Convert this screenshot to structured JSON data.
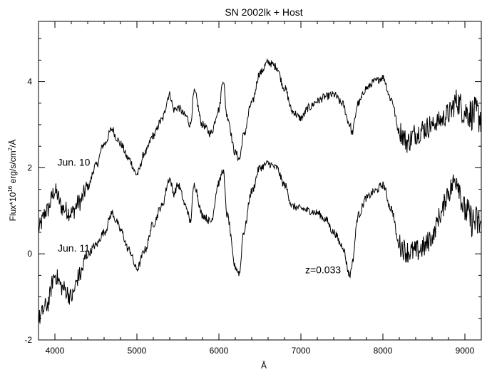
{
  "chart_data": {
    "type": "line",
    "title": "SN 2002lk + Host",
    "xlabel": "Å",
    "ylabel_parts": [
      "Flux*10",
      "16",
      " erg/s/cm",
      "2",
      "/Å"
    ],
    "xlim": [
      3800,
      9200
    ],
    "ylim": [
      -2,
      5.4
    ],
    "x_ticks": [
      4000,
      5000,
      6000,
      7000,
      8000,
      9000
    ],
    "y_ticks": [
      -2,
      0,
      2,
      4
    ],
    "y_tick_labels": [
      "-2",
      "0",
      "2",
      "4"
    ],
    "grid": false,
    "annotations": {
      "redshift": "z=0.033",
      "label_upper": "Jun. 10",
      "label_lower": "Jun. 11"
    },
    "annotation_positions": {
      "label_upper": [
        4230,
        2.05
      ],
      "label_lower": [
        4230,
        0.05
      ],
      "redshift": [
        7270,
        -0.45
      ]
    },
    "series": [
      {
        "x": [
          3800,
          3900,
          4000,
          4100,
          4200,
          4300,
          4400,
          4500,
          4600,
          4700,
          4750,
          4800,
          4900,
          5000,
          5100,
          5200,
          5300,
          5400,
          5450,
          5500,
          5600,
          5650,
          5700,
          5800,
          5900,
          6000,
          6050,
          6100,
          6200,
          6250,
          6300,
          6400,
          6500,
          6600,
          6700,
          6800,
          6900,
          7000,
          7100,
          7200,
          7300,
          7400,
          7500,
          7600,
          7620,
          7700,
          7800,
          7900,
          8000,
          8100,
          8200,
          8300,
          8400,
          8500,
          8600,
          8700,
          8800,
          8900,
          9000,
          9100,
          9200
        ],
        "y": [
          0.6,
          1.0,
          1.45,
          1.05,
          0.95,
          1.2,
          1.55,
          2.05,
          2.55,
          2.9,
          2.7,
          2.55,
          2.2,
          1.85,
          2.35,
          2.75,
          3.1,
          3.7,
          3.35,
          3.4,
          3.2,
          3.0,
          3.75,
          3.0,
          2.8,
          3.35,
          4.05,
          3.2,
          2.35,
          2.2,
          2.75,
          3.5,
          4.2,
          4.45,
          4.35,
          3.85,
          3.3,
          3.15,
          3.4,
          3.55,
          3.65,
          3.7,
          3.5,
          3.0,
          2.8,
          3.5,
          3.85,
          4.0,
          4.1,
          3.6,
          2.85,
          2.6,
          2.8,
          2.9,
          3.0,
          3.1,
          3.25,
          3.55,
          3.3,
          3.25,
          3.2
        ]
      },
      {
        "x": [
          3800,
          3900,
          4000,
          4100,
          4200,
          4300,
          4400,
          4500,
          4600,
          4700,
          4750,
          4800,
          4900,
          5000,
          5100,
          5200,
          5300,
          5400,
          5450,
          5500,
          5600,
          5650,
          5700,
          5800,
          5900,
          6000,
          6050,
          6100,
          6200,
          6250,
          6300,
          6400,
          6500,
          6600,
          6700,
          6800,
          6900,
          7000,
          7100,
          7200,
          7300,
          7400,
          7500,
          7600,
          7620,
          7700,
          7800,
          7900,
          8000,
          8100,
          8200,
          8300,
          8400,
          8500,
          8600,
          8700,
          8800,
          8900,
          9000,
          9100,
          9200
        ],
        "y": [
          -1.5,
          -1.2,
          -0.5,
          -0.8,
          -1.0,
          -0.5,
          0.0,
          0.2,
          0.5,
          0.95,
          0.75,
          0.55,
          0.1,
          -0.35,
          0.1,
          0.7,
          1.1,
          1.75,
          1.4,
          1.6,
          1.1,
          0.75,
          1.6,
          0.9,
          0.75,
          1.65,
          1.95,
          0.9,
          -0.3,
          -0.45,
          0.5,
          1.45,
          2.0,
          2.1,
          2.0,
          1.6,
          1.1,
          1.05,
          1.0,
          0.95,
          0.8,
          0.5,
          0.2,
          -0.5,
          -0.25,
          0.9,
          1.3,
          1.45,
          1.6,
          1.05,
          0.2,
          0.05,
          0.05,
          0.15,
          0.4,
          0.9,
          1.45,
          1.75,
          1.0,
          0.75,
          0.7
        ]
      }
    ]
  }
}
